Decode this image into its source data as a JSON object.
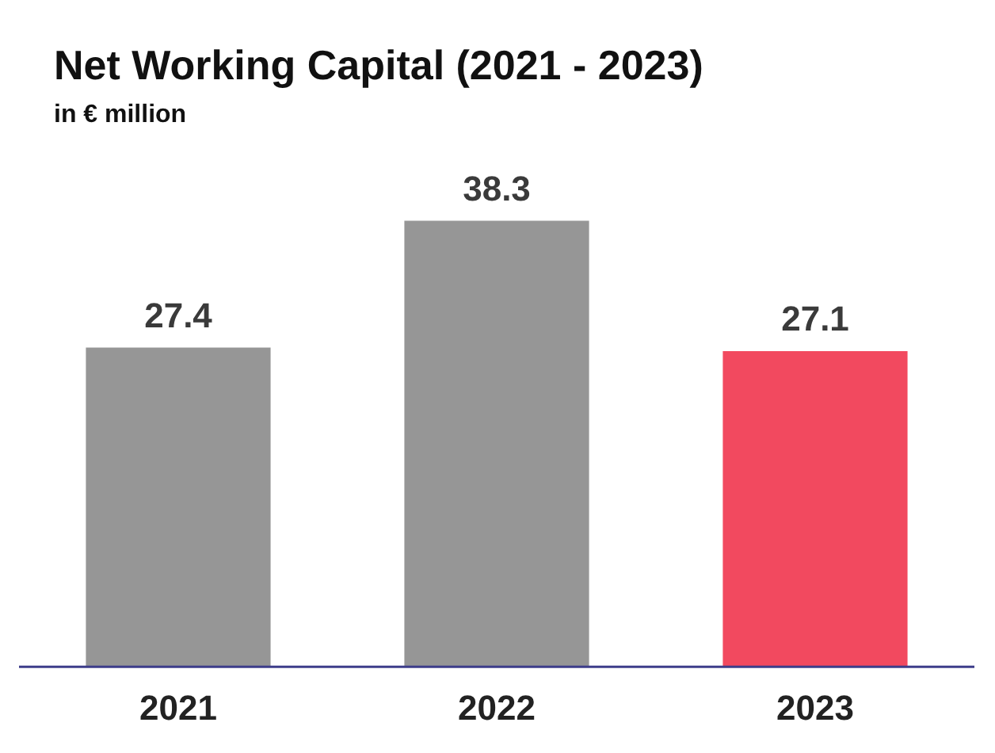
{
  "chart_data": {
    "type": "bar",
    "title": "Net Working Capital (2021 - 2023)",
    "subtitle": "in € million",
    "categories": [
      "2021",
      "2022",
      "2023"
    ],
    "values": [
      27.4,
      38.3,
      27.1
    ],
    "colors": [
      "#969696",
      "#969696",
      "#f2495f"
    ],
    "data_labels": true,
    "grid": false,
    "legend": false,
    "tick_labels": "x"
  }
}
